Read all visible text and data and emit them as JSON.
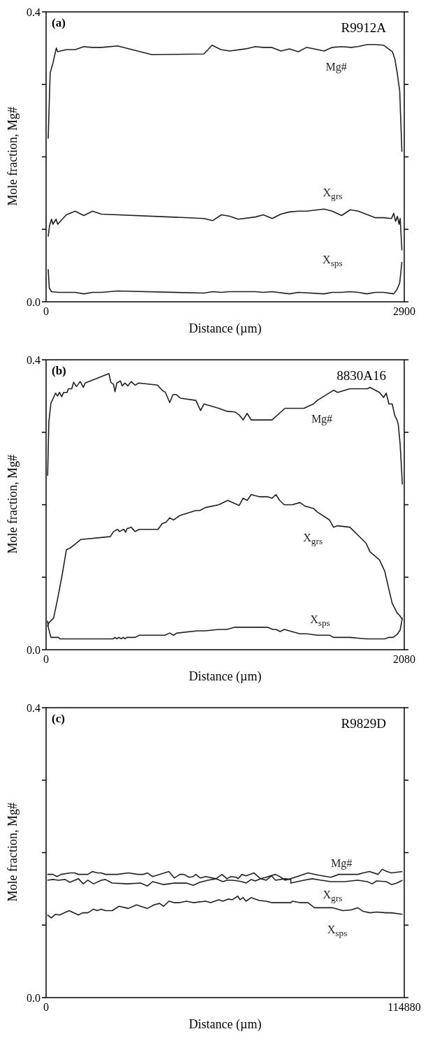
{
  "chart_data": [
    {
      "type": "line",
      "title": "(a)",
      "subtitle": "R9912A",
      "xlabel": "Distance (µm)",
      "ylabel": "Mole fraction, Mg#",
      "xlim": [
        0,
        2900
      ],
      "xticks": [
        0,
        2900
      ],
      "ylim": [
        0,
        0.4
      ],
      "yticks": [
        {
          "value": 0,
          "label": "0.0"
        },
        {
          "value": 0.1,
          "label": null
        },
        {
          "value": 0.2,
          "label": null
        },
        {
          "value": 0.3,
          "label": null
        },
        {
          "value": 0.4,
          "label": "0.4"
        }
      ],
      "marker": "none",
      "line_style": "solid",
      "series": [
        {
          "name": "Mg#",
          "color": "#231f20",
          "x": [
            17,
            33,
            55,
            83,
            94,
            164,
            236,
            306,
            372,
            448,
            579,
            857,
            1278,
            1344,
            1416,
            1486,
            1617,
            1694,
            1759,
            1825,
            1901,
            1971,
            2043,
            2109,
            2251,
            2317,
            2393,
            2470,
            2524,
            2601,
            2666,
            2732,
            2804,
            2824,
            2841,
            2863,
            2881
          ],
          "values": [
            0.225,
            0.316,
            0.329,
            0.35,
            0.345,
            0.348,
            0.348,
            0.352,
            0.351,
            0.351,
            0.353,
            0.341,
            0.342,
            0.354,
            0.348,
            0.346,
            0.349,
            0.352,
            0.351,
            0.351,
            0.346,
            0.349,
            0.345,
            0.351,
            0.346,
            0.351,
            0.352,
            0.351,
            0.352,
            0.355,
            0.355,
            0.354,
            0.345,
            0.335,
            0.318,
            0.291,
            0.207
          ]
        },
        {
          "name": "X$_{grs}$",
          "color": "#231f20",
          "x": [
            17,
            28,
            44,
            55,
            81,
            94,
            164,
            236,
            306,
            376,
            448,
            1278,
            1348,
            1420,
            1486,
            1556,
            1694,
            1759,
            1831,
            1901,
            1971,
            2043,
            2109,
            2251,
            2317,
            2393,
            2463,
            2528,
            2666,
            2732,
            2797,
            2815,
            2830,
            2845,
            2858,
            2867,
            2881
          ],
          "values": [
            0.09,
            0.105,
            0.114,
            0.107,
            0.114,
            0.107,
            0.12,
            0.125,
            0.119,
            0.125,
            0.121,
            0.115,
            0.112,
            0.12,
            0.118,
            0.114,
            0.117,
            0.12,
            0.115,
            0.121,
            0.124,
            0.125,
            0.125,
            0.128,
            0.125,
            0.119,
            0.127,
            0.125,
            0.116,
            0.116,
            0.115,
            0.122,
            0.111,
            0.118,
            0.107,
            0.115,
            0.071
          ]
        },
        {
          "name": "X$_{sps}$",
          "color": "#231f20",
          "x": [
            17,
            26,
            44,
            98,
            236,
            306,
            376,
            448,
            581,
            1278,
            1348,
            1420,
            1486,
            1694,
            1759,
            1831,
            1971,
            2043,
            2251,
            2317,
            2393,
            2463,
            2528,
            2596,
            2666,
            2732,
            2815,
            2841,
            2863,
            2881
          ],
          "values": [
            0.045,
            0.019,
            0.014,
            0.013,
            0.013,
            0.011,
            0.013,
            0.013,
            0.015,
            0.012,
            0.014,
            0.013,
            0.014,
            0.014,
            0.013,
            0.014,
            0.011,
            0.013,
            0.011,
            0.013,
            0.013,
            0.014,
            0.013,
            0.011,
            0.013,
            0.013,
            0.011,
            0.017,
            0.026,
            0.055
          ]
        }
      ]
    },
    {
      "type": "line",
      "title": "(b)",
      "subtitle": "8830A16",
      "xlabel": "Distance (µm)",
      "ylabel": "Mole fraction, Mg#",
      "xlim": [
        0,
        2080
      ],
      "xticks": [
        0,
        2080
      ],
      "ylim": [
        0,
        0.4
      ],
      "yticks": [
        {
          "value": 0,
          "label": "0.0"
        },
        {
          "value": 0.1,
          "label": null
        },
        {
          "value": 0.2,
          "label": null
        },
        {
          "value": 0.3,
          "label": null
        },
        {
          "value": 0.4,
          "label": "0.4"
        }
      ],
      "marker": "none",
      "line_style": "solid",
      "series": [
        {
          "name": "Mg#",
          "color": "#231f20",
          "x": [
            9,
            16,
            28,
            55,
            67,
            78,
            91,
            102,
            122,
            129,
            149,
            160,
            176,
            198,
            216,
            227,
            365,
            376,
            392,
            400,
            411,
            431,
            442,
            458,
            475,
            494,
            517,
            538,
            647,
            674,
            693,
            718,
            737,
            756,
            781,
            870,
            897,
            917,
            1003,
            1050,
            1097,
            1121,
            1144,
            1168,
            1191,
            1312,
            1387,
            1497,
            1552,
            1575,
            1669,
            1693,
            1764,
            1866,
            1881,
            1936,
            1960,
            1975,
            1991,
            2010,
            2025,
            2038,
            2045,
            2056,
            2069
          ],
          "values": [
            0.24,
            0.314,
            0.34,
            0.354,
            0.35,
            0.355,
            0.349,
            0.355,
            0.355,
            0.36,
            0.36,
            0.369,
            0.363,
            0.37,
            0.362,
            0.368,
            0.381,
            0.369,
            0.366,
            0.356,
            0.368,
            0.371,
            0.364,
            0.368,
            0.364,
            0.37,
            0.365,
            0.368,
            0.365,
            0.358,
            0.355,
            0.341,
            0.352,
            0.352,
            0.347,
            0.344,
            0.33,
            0.339,
            0.333,
            0.329,
            0.328,
            0.324,
            0.317,
            0.326,
            0.317,
            0.317,
            0.333,
            0.333,
            0.339,
            0.344,
            0.358,
            0.355,
            0.36,
            0.36,
            0.362,
            0.355,
            0.348,
            0.354,
            0.339,
            0.339,
            0.323,
            0.317,
            0.311,
            0.284,
            0.228
          ]
        },
        {
          "name": "X$_{grs}$",
          "color": "#231f20",
          "x": [
            8,
            16,
            44,
            66,
            91,
            118,
            138,
            165,
            201,
            373,
            392,
            415,
            426,
            452,
            462,
            470,
            494,
            517,
            541,
            650,
            674,
            697,
            718,
            740,
            776,
            870,
            893,
            924,
            1003,
            1055,
            1121,
            1144,
            1168,
            1191,
            1238,
            1285,
            1312,
            1335,
            1356,
            1383,
            1430,
            1474,
            1505,
            1552,
            1575,
            1646,
            1669,
            1693,
            1764,
            1858,
            1881,
            1936,
            1967,
            1991,
            2010,
            2038,
            2054,
            2069
          ],
          "values": [
            0.032,
            0.037,
            0.044,
            0.069,
            0.1,
            0.138,
            0.14,
            0.145,
            0.152,
            0.156,
            0.163,
            0.166,
            0.163,
            0.166,
            0.162,
            0.167,
            0.169,
            0.163,
            0.166,
            0.166,
            0.174,
            0.176,
            0.182,
            0.179,
            0.185,
            0.192,
            0.192,
            0.196,
            0.2,
            0.206,
            0.199,
            0.209,
            0.206,
            0.214,
            0.211,
            0.211,
            0.209,
            0.214,
            0.206,
            0.2,
            0.2,
            0.203,
            0.198,
            0.195,
            0.19,
            0.179,
            0.169,
            0.171,
            0.169,
            0.147,
            0.135,
            0.124,
            0.108,
            0.083,
            0.064,
            0.051,
            0.047,
            0.042
          ]
        },
        {
          "name": "X$_{sps}$",
          "color": "#231f20",
          "x": [
            8,
            13,
            28,
            71,
            81,
            94,
            389,
            400,
            411,
            423,
            436,
            447,
            458,
            470,
            517,
            541,
            690,
            718,
            740,
            760,
            878,
            924,
            1003,
            1050,
            1097,
            1285,
            1317,
            1335,
            1359,
            1383,
            1474,
            1513,
            1575,
            1646,
            1669,
            1764,
            1858,
            1967,
            1991,
            2015,
            2038,
            2056,
            2069
          ],
          "values": [
            0.04,
            0.031,
            0.017,
            0.017,
            0.015,
            0.015,
            0.015,
            0.017,
            0.015,
            0.017,
            0.015,
            0.017,
            0.015,
            0.017,
            0.017,
            0.02,
            0.02,
            0.023,
            0.02,
            0.023,
            0.026,
            0.026,
            0.028,
            0.028,
            0.031,
            0.031,
            0.028,
            0.028,
            0.025,
            0.028,
            0.022,
            0.022,
            0.02,
            0.02,
            0.017,
            0.017,
            0.015,
            0.015,
            0.017,
            0.017,
            0.021,
            0.027,
            0.044
          ]
        }
      ]
    },
    {
      "type": "line",
      "title": "(c)",
      "subtitle": "R9829D",
      "xlabel": "Distance (µm)",
      "ylabel": "Mole fraction, Mg#",
      "xlim": [
        0,
        114880
      ],
      "xticks": [
        0,
        114880
      ],
      "ylim": [
        0,
        0.4
      ],
      "yticks": [
        {
          "value": 0,
          "label": "0.0"
        },
        {
          "value": 0.1,
          "label": null
        },
        {
          "value": 0.2,
          "label": null
        },
        {
          "value": 0.3,
          "label": null
        },
        {
          "value": 0.4,
          "label": "0.4"
        }
      ],
      "marker": "none",
      "line_style": "solid",
      "series": [
        {
          "name": "Mg#",
          "color": "#231f20",
          "x": [
            400,
            2200,
            3500,
            4800,
            7800,
            9100,
            10400,
            13400,
            14900,
            16400,
            17700,
            19000,
            22900,
            26400,
            29400,
            31200,
            32500,
            34200,
            39400,
            41100,
            42900,
            44200,
            45900,
            47200,
            48000,
            49500,
            51200,
            54500,
            56400,
            58000,
            59300,
            61000,
            61600,
            62800,
            64100,
            66700,
            68800,
            70600,
            71900,
            73600,
            75300,
            76600,
            78500,
            84000,
            87400,
            91300,
            93900,
            100000,
            101700,
            103700,
            106500,
            107800,
            109300,
            110800,
            114300
          ],
          "values": [
            0.17,
            0.17,
            0.167,
            0.17,
            0.172,
            0.172,
            0.17,
            0.17,
            0.174,
            0.172,
            0.172,
            0.17,
            0.17,
            0.172,
            0.17,
            0.17,
            0.172,
            0.167,
            0.174,
            0.165,
            0.17,
            0.17,
            0.166,
            0.167,
            0.17,
            0.165,
            0.167,
            0.164,
            0.17,
            0.164,
            0.167,
            0.166,
            0.164,
            0.17,
            0.168,
            0.172,
            0.164,
            0.166,
            0.168,
            0.17,
            0.166,
            0.162,
            0.164,
            0.172,
            0.169,
            0.166,
            0.17,
            0.17,
            0.172,
            0.174,
            0.17,
            0.177,
            0.174,
            0.172,
            0.174
          ]
        },
        {
          "name": "X$_{grs}$",
          "color": "#231f20",
          "x": [
            400,
            2200,
            3900,
            6100,
            7600,
            10400,
            11900,
            13400,
            15200,
            17700,
            19000,
            21200,
            26000,
            30300,
            32500,
            34200,
            37700,
            39400,
            41100,
            42900,
            45000,
            47200,
            49300,
            51900,
            54500,
            56700,
            58000,
            59700,
            61500,
            62800,
            64100,
            65800,
            67100,
            68800,
            70600,
            72300,
            73600,
            76600,
            78500,
            78500,
            82700,
            85300,
            88300,
            91300,
            95700,
            100000,
            103000,
            104600,
            106000,
            109100,
            110800,
            112500,
            114300
          ],
          "values": [
            0.162,
            0.163,
            0.162,
            0.163,
            0.159,
            0.164,
            0.157,
            0.162,
            0.157,
            0.162,
            0.163,
            0.158,
            0.157,
            0.158,
            0.154,
            0.16,
            0.156,
            0.157,
            0.158,
            0.158,
            0.158,
            0.155,
            0.159,
            0.162,
            0.164,
            0.16,
            0.162,
            0.162,
            0.161,
            0.16,
            0.158,
            0.163,
            0.161,
            0.164,
            0.162,
            0.168,
            0.162,
            0.164,
            0.163,
            0.158,
            0.162,
            0.164,
            0.162,
            0.16,
            0.16,
            0.162,
            0.16,
            0.157,
            0.161,
            0.16,
            0.156,
            0.158,
            0.162
          ]
        },
        {
          "name": "X$_{sps}$",
          "color": "#231f20",
          "x": [
            400,
            1700,
            3000,
            4300,
            7400,
            10400,
            11700,
            13400,
            15200,
            16400,
            17700,
            19000,
            21200,
            23400,
            26400,
            29000,
            32500,
            34600,
            36400,
            37700,
            39400,
            41100,
            42900,
            45000,
            47200,
            51100,
            52800,
            55400,
            56700,
            58400,
            59700,
            61500,
            62200,
            63200,
            64100,
            65800,
            67100,
            68400,
            70600,
            72300,
            78500,
            79000,
            81400,
            84000,
            86100,
            91800,
            95200,
            97800,
            100000,
            101700,
            103900,
            106000,
            109100,
            110800,
            114300
          ],
          "values": [
            0.114,
            0.11,
            0.115,
            0.114,
            0.12,
            0.114,
            0.117,
            0.117,
            0.122,
            0.12,
            0.122,
            0.12,
            0.12,
            0.126,
            0.123,
            0.128,
            0.123,
            0.128,
            0.13,
            0.126,
            0.133,
            0.131,
            0.131,
            0.133,
            0.131,
            0.133,
            0.131,
            0.135,
            0.133,
            0.136,
            0.135,
            0.14,
            0.135,
            0.138,
            0.133,
            0.138,
            0.136,
            0.134,
            0.133,
            0.131,
            0.131,
            0.133,
            0.131,
            0.131,
            0.124,
            0.124,
            0.12,
            0.121,
            0.124,
            0.119,
            0.117,
            0.118,
            0.117,
            0.117,
            0.115
          ]
        }
      ]
    }
  ]
}
